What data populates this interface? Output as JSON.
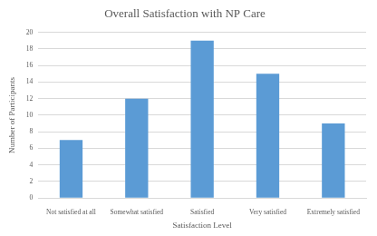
{
  "chart_data": {
    "type": "bar",
    "title": "Overall Satisfaction with NP Care",
    "x_label": "Satisfaction Level",
    "y_label": "Number of Participants",
    "categories": [
      "Not satisfied at all",
      "Somewhat satisfied",
      "Satisfied",
      "Very satisfied",
      "Extremely satisfied"
    ],
    "values": [
      7,
      12,
      19,
      15,
      9
    ],
    "color": "#5b9bd5",
    "ylim": [
      0,
      20
    ],
    "yticks": [
      0,
      2,
      4,
      6,
      8,
      10,
      12,
      14,
      16,
      18,
      20
    ],
    "grid": true
  }
}
